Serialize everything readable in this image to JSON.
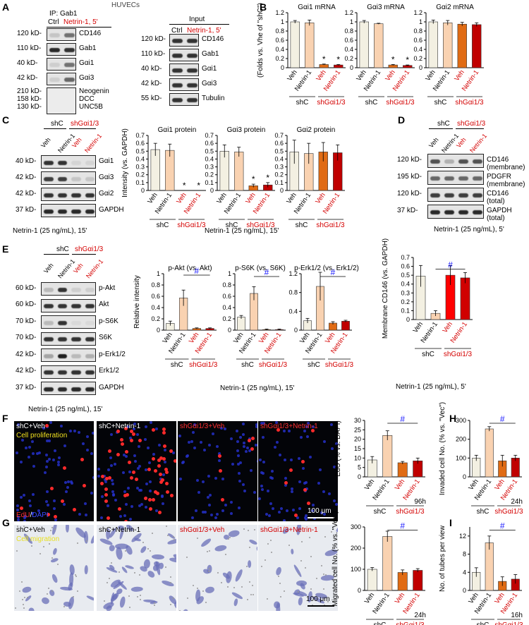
{
  "panel_letters": [
    "A",
    "B",
    "C",
    "D",
    "E",
    "F",
    "G",
    "H",
    "I"
  ],
  "shared": {
    "veh": "Veh",
    "netrin": "Netrin-1",
    "shc": "shC",
    "shgai": "shGαi1/3",
    "treat15": "Netrin-1 (25 ng/mL), 15'",
    "treat5": "Netrin-1 (25 ng/mL), 5'",
    "star": "*",
    "hash": "#"
  },
  "panelA": {
    "header": "HUVECs",
    "ip_title": "IP: Gab1",
    "ip_ctrl": "Ctrl",
    "ip_treat": "Netrin-1, 5'",
    "input_title": "Input",
    "ip_rows": [
      {
        "kd": "120 kD-",
        "name": "CD146"
      },
      {
        "kd": "110 kD-",
        "name": "Gab1"
      },
      {
        "kd": "40 kD-",
        "name": "Gαi1"
      },
      {
        "kd": "42 kD-",
        "name": "Gαi3"
      }
    ],
    "ip_tall_kd": [
      "210 kD-",
      "158 kD-",
      "130 kD-"
    ],
    "ip_tall_names": [
      "Neogenin",
      "DCC",
      "UNC5B"
    ],
    "input_rows": [
      {
        "kd": "120 kD-",
        "name": "CD146"
      },
      {
        "kd": "110 kD-",
        "name": "Gab1"
      },
      {
        "kd": "40 kD-",
        "name": "Gαi1"
      },
      {
        "kd": "42 kD-",
        "name": "Gαi3"
      },
      {
        "kd": "55 kD-",
        "name": "Tubulin"
      }
    ]
  },
  "panelC_blot": {
    "rows": [
      {
        "kd": "40 kD-",
        "name": "Gαi1"
      },
      {
        "kd": "42 kD-",
        "name": "Gαi3"
      },
      {
        "kd": "42 kD-",
        "name": "Gαi2"
      },
      {
        "kd": "37 kD-",
        "name": "GAPDH"
      }
    ]
  },
  "panelD_blot": {
    "rows": [
      {
        "kd": "120 kD-",
        "name": "CD146 (membrane)"
      },
      {
        "kd": "195 kD-",
        "name": "PDGFR (membrane)"
      },
      {
        "kd": "120 kD-",
        "name": "CD146 (total)"
      },
      {
        "kd": "37 kD-",
        "name": "GAPDH (total)"
      }
    ]
  },
  "panelE_blot": {
    "rows": [
      {
        "kd": "60 kD-",
        "name": "p-Akt"
      },
      {
        "kd": "60 kD-",
        "name": "Akt"
      },
      {
        "kd": "70 kD-",
        "name": "p-S6K"
      },
      {
        "kd": "70 kD-",
        "name": "S6K"
      },
      {
        "kd": "42 kD-",
        "name": "p-Erk1/2"
      },
      {
        "kd": "42 kD-",
        "name": "Erk1/2"
      },
      {
        "kd": "37 kD-",
        "name": "GAPDH"
      }
    ]
  },
  "panelF": {
    "titles": [
      "shC+Veh",
      "shC+Netrin-1",
      "shGαi1/3+Veh",
      "shGαi1/3+Netrin-1"
    ],
    "overlay": "Cell proliferation",
    "stain_red": "EdU",
    "stain_sep": "/",
    "stain_blue": "DAPI",
    "scale": "100 μm"
  },
  "panelG": {
    "titles": [
      "shC+Veh",
      "shC+Netrin-1",
      "shGαi1/3+Veh",
      "shGαi1/3+Netrin-1"
    ],
    "overlay": "Cell migration",
    "scale": "100 μm"
  },
  "chart_data": [
    {
      "id": "B1",
      "type": "bar",
      "title": "Gαi1 mRNA",
      "ylabel": "(Folds vs. Vhe of \"shC\")",
      "ylim": [
        0,
        1.2
      ],
      "yticks": [
        0,
        0.2,
        0.4,
        0.6,
        0.8,
        1,
        1.2
      ],
      "categories": [
        "Veh",
        "Netrin-1",
        "Veh",
        "Netrin-1"
      ],
      "values": [
        1.0,
        0.98,
        0.07,
        0.06
      ],
      "errors": [
        0.03,
        0.06,
        0.01,
        0.01
      ],
      "stars": [
        false,
        false,
        true,
        true
      ],
      "colors": [
        "#f3f0e2",
        "#f9d2b1",
        "#e06b14",
        "#c00000"
      ]
    },
    {
      "id": "B2",
      "type": "bar",
      "title": "Gαi3 mRNA",
      "ylabel": "",
      "ylim": [
        0,
        1.2
      ],
      "yticks": [
        0,
        0.2,
        0.4,
        0.6,
        0.8,
        1,
        1.2
      ],
      "categories": [
        "Veh",
        "Netrin-1",
        "Veh",
        "Netrin-1"
      ],
      "values": [
        1.0,
        0.96,
        0.06,
        0.05
      ],
      "errors": [
        0.03,
        0.01,
        0.01,
        0.01
      ],
      "stars": [
        false,
        false,
        true,
        true
      ],
      "colors": [
        "#f3f0e2",
        "#f9d2b1",
        "#e06b14",
        "#c00000"
      ]
    },
    {
      "id": "B3",
      "type": "bar",
      "title": "Gαi2 mRNA",
      "ylabel": "",
      "ylim": [
        0,
        1.2
      ],
      "yticks": [
        0,
        0.2,
        0.4,
        0.6,
        0.8,
        1,
        1.2
      ],
      "categories": [
        "Veh",
        "Netrin-1",
        "Veh",
        "Netrin-1"
      ],
      "values": [
        1.0,
        0.98,
        0.95,
        0.94
      ],
      "errors": [
        0.04,
        0.05,
        0.04,
        0.04
      ],
      "stars": [
        false,
        false,
        false,
        false
      ],
      "colors": [
        "#f3f0e2",
        "#f9d2b1",
        "#e06b14",
        "#c00000"
      ]
    },
    {
      "id": "C1",
      "type": "bar",
      "title": "Gαi1 protein",
      "ylabel": "Intensity (vs. GAPDH)",
      "ylim": [
        0,
        0.7
      ],
      "yticks": [
        0,
        0.1,
        0.2,
        0.3,
        0.4,
        0.5,
        0.6,
        0.7
      ],
      "categories": [
        "Veh",
        "Netrin-1",
        "Veh",
        "Netrin-1"
      ],
      "values": [
        0.52,
        0.51,
        0,
        0
      ],
      "errors": [
        0.08,
        0.08,
        0,
        0
      ],
      "stars": [
        false,
        false,
        true,
        true
      ],
      "colors": [
        "#f3f0e2",
        "#f9d2b1",
        "#e06b14",
        "#c00000"
      ]
    },
    {
      "id": "C2",
      "type": "bar",
      "title": "Gαi3 protein",
      "ylabel": "",
      "ylim": [
        0,
        0.7
      ],
      "yticks": [
        0,
        0.1,
        0.2,
        0.3,
        0.4,
        0.5,
        0.6,
        0.7
      ],
      "categories": [
        "Veh",
        "Netrin-1",
        "Veh",
        "Netrin-1"
      ],
      "values": [
        0.5,
        0.49,
        0.06,
        0.07
      ],
      "errors": [
        0.08,
        0.06,
        0.02,
        0.03
      ],
      "stars": [
        false,
        false,
        true,
        true
      ],
      "colors": [
        "#f3f0e2",
        "#f9d2b1",
        "#e06b14",
        "#c00000"
      ]
    },
    {
      "id": "C3",
      "type": "bar",
      "title": "Gαi2 protein",
      "ylabel": "",
      "ylim": [
        0,
        0.7
      ],
      "yticks": [
        0,
        0.1,
        0.2,
        0.3,
        0.4,
        0.5,
        0.6,
        0.7
      ],
      "categories": [
        "Veh",
        "Netrin-1",
        "Veh",
        "Netrin-1"
      ],
      "values": [
        0.49,
        0.47,
        0.49,
        0.48
      ],
      "errors": [
        0.15,
        0.13,
        0.12,
        0.1
      ],
      "stars": [
        false,
        false,
        false,
        false
      ],
      "colors": [
        "#f3f0e2",
        "#f9d2b1",
        "#e06b14",
        "#c00000"
      ]
    },
    {
      "id": "E1",
      "type": "bar",
      "title": "p-Akt (vs. Akt)",
      "ylabel": "Relative intensity",
      "ylim": [
        0,
        1
      ],
      "yticks": [
        0,
        0.2,
        0.4,
        0.6,
        0.8,
        1
      ],
      "categories": [
        "Veh",
        "Netrin-1",
        "Veh",
        "Netrin-1"
      ],
      "values": [
        0.12,
        0.57,
        0.03,
        0.03
      ],
      "errors": [
        0.04,
        0.14,
        0.01,
        0.01
      ],
      "stars": [
        false,
        false,
        false,
        false
      ],
      "colors": [
        "#f3f0e2",
        "#f9d2b1",
        "#e06b14",
        "#c00000"
      ]
    },
    {
      "id": "E2",
      "type": "bar",
      "title": "p-S6K (vs. S6K)",
      "ylabel": "",
      "ylim": [
        0,
        1
      ],
      "yticks": [
        0,
        0.2,
        0.4,
        0.6,
        0.8,
        1
      ],
      "categories": [
        "Veh",
        "Netrin-1",
        "Veh",
        "Netrin-1"
      ],
      "values": [
        0.23,
        0.65,
        0.01,
        0.01
      ],
      "errors": [
        0.03,
        0.12,
        0.01,
        0.01
      ],
      "stars": [
        false,
        false,
        false,
        false
      ],
      "colors": [
        "#f3f0e2",
        "#f9d2b1",
        "#e06b14",
        "#c00000"
      ]
    },
    {
      "id": "E3",
      "type": "bar",
      "title": "p-Erk1/2 (vs. Erk1/2)",
      "ylabel": "",
      "ylim": [
        0,
        1.2
      ],
      "yticks": [
        0,
        0.4,
        0.8,
        1.2
      ],
      "categories": [
        "Veh",
        "Netrin-1",
        "Veh",
        "Netrin-1"
      ],
      "values": [
        0.2,
        0.93,
        0.15,
        0.19
      ],
      "errors": [
        0.05,
        0.3,
        0.03,
        0.02
      ],
      "stars": [
        false,
        false,
        false,
        false
      ],
      "colors": [
        "#f3f0e2",
        "#f9d2b1",
        "#e06b14",
        "#c00000"
      ]
    },
    {
      "id": "D2",
      "type": "bar",
      "title": "",
      "ylabel": "Membrane CD146 (vs. GAPDH)",
      "ylim": [
        0,
        0.7
      ],
      "yticks": [
        0,
        0.1,
        0.2,
        0.3,
        0.4,
        0.5,
        0.6,
        0.7
      ],
      "categories": [
        "Veh",
        "Netrin-1",
        "Veh",
        "Netrin-1"
      ],
      "values": [
        0.49,
        0.07,
        0.5,
        0.47
      ],
      "errors": [
        0.12,
        0.03,
        0.11,
        0.06
      ],
      "stars": [
        false,
        false,
        false,
        false
      ],
      "colors": [
        "#f3f0e2",
        "#f9d2b1",
        "#ff0000",
        "#d00000"
      ]
    },
    {
      "id": "F2",
      "type": "bar",
      "title": "",
      "ylabel": "EdU (% vs. DAPI)",
      "ylim": [
        0,
        30
      ],
      "yticks": [
        0,
        5,
        10,
        15,
        20,
        25,
        30
      ],
      "categories": [
        "Veh",
        "Netrin-1",
        "Veh",
        "Netrin-1"
      ],
      "values": [
        9,
        22,
        7.5,
        8.5
      ],
      "errors": [
        1.8,
        2.5,
        0.7,
        1.5
      ],
      "stars": [
        false,
        false,
        false,
        false
      ],
      "colors": [
        "#f3f0e2",
        "#f9d2b1",
        "#e06b14",
        "#c00000"
      ],
      "note": "96h"
    },
    {
      "id": "H",
      "type": "bar",
      "title": "",
      "ylabel": "Invaded cell No. (% vs. \"Vec\")",
      "ylim": [
        0,
        300
      ],
      "yticks": [
        0,
        100,
        200,
        300
      ],
      "categories": [
        "Veh",
        "Netrin-1",
        "Veh",
        "Netrin-1"
      ],
      "values": [
        100,
        255,
        85,
        100
      ],
      "errors": [
        15,
        12,
        30,
        15
      ],
      "stars": [
        false,
        false,
        false,
        false
      ],
      "colors": [
        "#f3f0e2",
        "#f9d2b1",
        "#e06b14",
        "#c00000"
      ],
      "note": "24h"
    },
    {
      "id": "G2",
      "type": "bar",
      "title": "",
      "ylabel": "Migrated cell No. (% vs. \"Vec\")",
      "ylim": [
        0,
        300
      ],
      "yticks": [
        0,
        100,
        200,
        300
      ],
      "categories": [
        "Veh",
        "Netrin-1",
        "Veh",
        "Netrin-1"
      ],
      "values": [
        100,
        255,
        85,
        95
      ],
      "errors": [
        8,
        25,
        12,
        8
      ],
      "stars": [
        false,
        false,
        false,
        false
      ],
      "colors": [
        "#f3f0e2",
        "#f9d2b1",
        "#e06b14",
        "#c00000"
      ],
      "note": "24h"
    },
    {
      "id": "I",
      "type": "bar",
      "title": "",
      "ylabel": "No. of tubes per view",
      "ylim": [
        0,
        14
      ],
      "yticks": [
        0,
        4,
        8,
        12
      ],
      "categories": [
        "Veh",
        "Netrin-1",
        "Veh",
        "Netrin-1"
      ],
      "values": [
        4,
        10.5,
        2,
        2.5
      ],
      "errors": [
        1,
        1.5,
        1,
        1
      ],
      "stars": [
        false,
        false,
        false,
        false
      ],
      "colors": [
        "#f3f0e2",
        "#f9d2b1",
        "#e06b14",
        "#c00000"
      ],
      "note": "16h"
    }
  ]
}
